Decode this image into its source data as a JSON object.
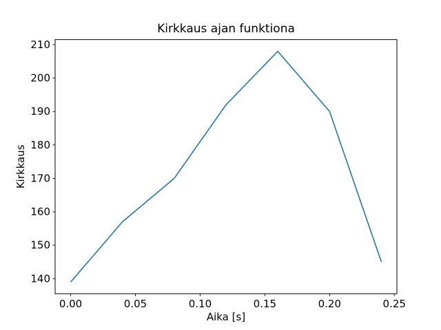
{
  "figure": {
    "background": "#ffffff",
    "text_color": "#000000",
    "axis_color": "#000000"
  },
  "chart_data": {
    "type": "line",
    "title": "Kirkkaus ajan funktiona",
    "xlabel": "Aika [s]",
    "ylabel": "Kirkkaus",
    "x": [
      0.0,
      0.04,
      0.08,
      0.12,
      0.16,
      0.2,
      0.24
    ],
    "series": [
      {
        "name": "Kirkkaus",
        "color": "#1f77b4",
        "values": [
          139,
          157,
          170,
          192,
          208,
          190,
          145
        ]
      }
    ],
    "xlim": [
      -0.012,
      0.252
    ],
    "ylim": [
      135.5,
      211.5
    ],
    "xticks": {
      "values": [
        0.0,
        0.05,
        0.1,
        0.15,
        0.2,
        0.25
      ],
      "labels": [
        "0.00",
        "0.05",
        "0.10",
        "0.15",
        "0.20",
        "0.25"
      ]
    },
    "yticks": {
      "values": [
        140,
        150,
        160,
        170,
        180,
        190,
        200,
        210
      ],
      "labels": [
        "140",
        "150",
        "160",
        "170",
        "180",
        "190",
        "200",
        "210"
      ]
    },
    "grid": false,
    "legend": "none",
    "line_width": 1.6
  }
}
